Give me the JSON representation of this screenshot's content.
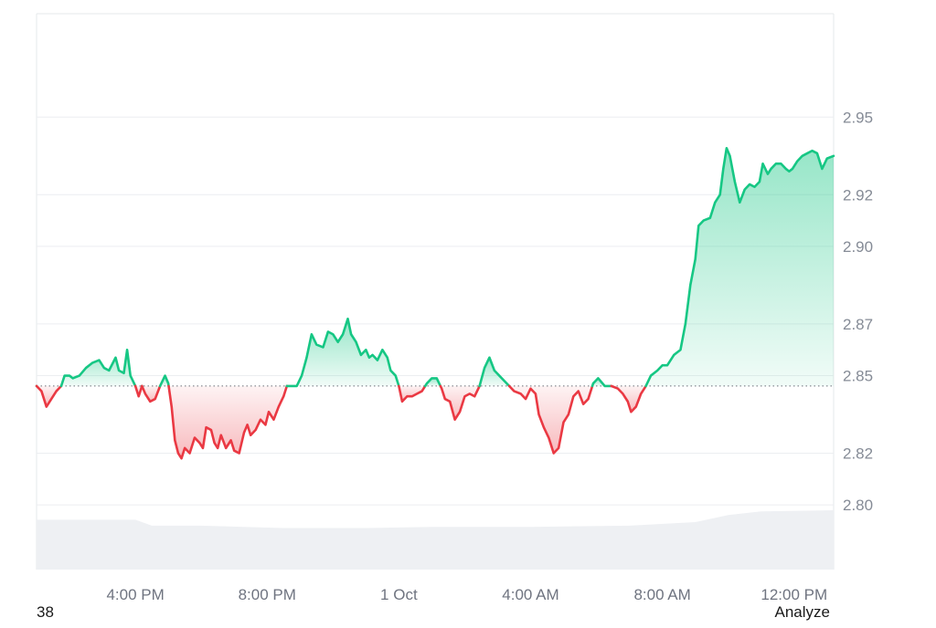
{
  "chart_data": {
    "type": "area",
    "baseline": 2.846,
    "ylim": [
      2.775,
      2.99
    ],
    "y_ticks": [
      "2.95",
      "2.92",
      "2.90",
      "2.87",
      "2.85",
      "2.82",
      "2.80"
    ],
    "x_ticks": [
      "4:00 PM",
      "8:00 PM",
      "1 Oct",
      "4:00 AM",
      "8:00 AM",
      "12:00 PM"
    ],
    "x_tick_hours": [
      4,
      8,
      12,
      16,
      20,
      24
    ],
    "x_range_hours": [
      1.0,
      25.2
    ],
    "colors": {
      "above": "#16c784",
      "below": "#ea3943",
      "grid": "#eceef1",
      "volume": "#eef0f3"
    },
    "series": [
      {
        "values": [
          [
            1.0,
            2.846
          ],
          [
            1.15,
            2.844
          ],
          [
            1.3,
            2.838
          ],
          [
            1.45,
            2.841
          ],
          [
            1.6,
            2.844
          ],
          [
            1.75,
            2.846
          ],
          [
            1.85,
            2.85
          ],
          [
            2.0,
            2.85
          ],
          [
            2.1,
            2.849
          ],
          [
            2.3,
            2.85
          ],
          [
            2.5,
            2.853
          ],
          [
            2.7,
            2.855
          ],
          [
            2.9,
            2.856
          ],
          [
            3.05,
            2.853
          ],
          [
            3.2,
            2.852
          ],
          [
            3.4,
            2.857
          ],
          [
            3.5,
            2.852
          ],
          [
            3.65,
            2.851
          ],
          [
            3.75,
            2.86
          ],
          [
            3.85,
            2.85
          ],
          [
            4.0,
            2.846
          ],
          [
            4.1,
            2.842
          ],
          [
            4.2,
            2.846
          ],
          [
            4.3,
            2.843
          ],
          [
            4.45,
            2.84
          ],
          [
            4.6,
            2.841
          ],
          [
            4.75,
            2.846
          ],
          [
            4.9,
            2.85
          ],
          [
            5.0,
            2.847
          ],
          [
            5.1,
            2.838
          ],
          [
            5.2,
            2.825
          ],
          [
            5.3,
            2.82
          ],
          [
            5.4,
            2.818
          ],
          [
            5.5,
            2.822
          ],
          [
            5.65,
            2.82
          ],
          [
            5.8,
            2.826
          ],
          [
            5.95,
            2.824
          ],
          [
            6.05,
            2.822
          ],
          [
            6.15,
            2.83
          ],
          [
            6.3,
            2.829
          ],
          [
            6.4,
            2.824
          ],
          [
            6.5,
            2.822
          ],
          [
            6.6,
            2.827
          ],
          [
            6.75,
            2.822
          ],
          [
            6.9,
            2.825
          ],
          [
            7.0,
            2.821
          ],
          [
            7.15,
            2.82
          ],
          [
            7.3,
            2.828
          ],
          [
            7.4,
            2.831
          ],
          [
            7.5,
            2.827
          ],
          [
            7.65,
            2.829
          ],
          [
            7.8,
            2.833
          ],
          [
            7.95,
            2.831
          ],
          [
            8.05,
            2.836
          ],
          [
            8.2,
            2.833
          ],
          [
            8.35,
            2.838
          ],
          [
            8.5,
            2.842
          ],
          [
            8.6,
            2.846
          ],
          [
            8.75,
            2.846
          ],
          [
            8.9,
            2.846
          ],
          [
            9.05,
            2.85
          ],
          [
            9.2,
            2.857
          ],
          [
            9.35,
            2.866
          ],
          [
            9.5,
            2.862
          ],
          [
            9.7,
            2.861
          ],
          [
            9.85,
            2.867
          ],
          [
            10.0,
            2.866
          ],
          [
            10.15,
            2.863
          ],
          [
            10.3,
            2.866
          ],
          [
            10.45,
            2.872
          ],
          [
            10.55,
            2.866
          ],
          [
            10.7,
            2.863
          ],
          [
            10.85,
            2.858
          ],
          [
            11.0,
            2.86
          ],
          [
            11.1,
            2.857
          ],
          [
            11.2,
            2.858
          ],
          [
            11.35,
            2.856
          ],
          [
            11.5,
            2.86
          ],
          [
            11.65,
            2.857
          ],
          [
            11.75,
            2.852
          ],
          [
            11.9,
            2.85
          ],
          [
            12.0,
            2.846
          ],
          [
            12.1,
            2.84
          ],
          [
            12.25,
            2.842
          ],
          [
            12.4,
            2.842
          ],
          [
            12.55,
            2.843
          ],
          [
            12.7,
            2.844
          ],
          [
            12.85,
            2.847
          ],
          [
            13.0,
            2.849
          ],
          [
            13.15,
            2.849
          ],
          [
            13.3,
            2.845
          ],
          [
            13.4,
            2.841
          ],
          [
            13.55,
            2.84
          ],
          [
            13.7,
            2.833
          ],
          [
            13.85,
            2.836
          ],
          [
            14.0,
            2.842
          ],
          [
            14.15,
            2.843
          ],
          [
            14.3,
            2.842
          ],
          [
            14.45,
            2.846
          ],
          [
            14.6,
            2.853
          ],
          [
            14.75,
            2.857
          ],
          [
            14.9,
            2.852
          ],
          [
            15.05,
            2.85
          ],
          [
            15.2,
            2.848
          ],
          [
            15.35,
            2.846
          ],
          [
            15.5,
            2.844
          ],
          [
            15.7,
            2.843
          ],
          [
            15.85,
            2.841
          ],
          [
            16.0,
            2.845
          ],
          [
            16.15,
            2.843
          ],
          [
            16.25,
            2.835
          ],
          [
            16.4,
            2.83
          ],
          [
            16.55,
            2.826
          ],
          [
            16.7,
            2.82
          ],
          [
            16.85,
            2.822
          ],
          [
            17.0,
            2.832
          ],
          [
            17.15,
            2.835
          ],
          [
            17.3,
            2.842
          ],
          [
            17.45,
            2.844
          ],
          [
            17.6,
            2.839
          ],
          [
            17.75,
            2.841
          ],
          [
            17.9,
            2.847
          ],
          [
            18.05,
            2.849
          ],
          [
            18.25,
            2.846
          ],
          [
            18.45,
            2.846
          ],
          [
            18.65,
            2.845
          ],
          [
            18.8,
            2.843
          ],
          [
            18.95,
            2.84
          ],
          [
            19.05,
            2.836
          ],
          [
            19.2,
            2.838
          ],
          [
            19.35,
            2.843
          ],
          [
            19.5,
            2.846
          ],
          [
            19.65,
            2.85
          ],
          [
            19.85,
            2.852
          ],
          [
            20.0,
            2.854
          ],
          [
            20.15,
            2.854
          ],
          [
            20.35,
            2.858
          ],
          [
            20.55,
            2.86
          ],
          [
            20.7,
            2.87
          ],
          [
            20.85,
            2.885
          ],
          [
            21.0,
            2.895
          ],
          [
            21.1,
            2.908
          ],
          [
            21.25,
            2.91
          ],
          [
            21.45,
            2.911
          ],
          [
            21.6,
            2.917
          ],
          [
            21.75,
            2.92
          ],
          [
            21.85,
            2.93
          ],
          [
            21.95,
            2.938
          ],
          [
            22.05,
            2.935
          ],
          [
            22.2,
            2.925
          ],
          [
            22.35,
            2.917
          ],
          [
            22.5,
            2.922
          ],
          [
            22.65,
            2.924
          ],
          [
            22.8,
            2.923
          ],
          [
            22.95,
            2.925
          ],
          [
            23.05,
            2.932
          ],
          [
            23.2,
            2.928
          ],
          [
            23.3,
            2.93
          ],
          [
            23.45,
            2.932
          ],
          [
            23.6,
            2.932
          ],
          [
            23.75,
            2.93
          ],
          [
            23.85,
            2.929
          ],
          [
            23.95,
            2.93
          ],
          [
            24.1,
            2.933
          ],
          [
            24.25,
            2.935
          ],
          [
            24.4,
            2.936
          ],
          [
            24.55,
            2.937
          ],
          [
            24.7,
            2.936
          ],
          [
            24.85,
            2.93
          ],
          [
            25.0,
            2.934
          ],
          [
            25.2,
            2.935
          ]
        ]
      }
    ],
    "volume_values": [
      [
        1.0,
        0.42
      ],
      [
        4.0,
        0.42
      ],
      [
        4.5,
        0.37
      ],
      [
        6.0,
        0.37
      ],
      [
        8.5,
        0.35
      ],
      [
        11.0,
        0.35
      ],
      [
        13.0,
        0.36
      ],
      [
        16.0,
        0.36
      ],
      [
        19.0,
        0.37
      ],
      [
        21.0,
        0.4
      ],
      [
        22.0,
        0.46
      ],
      [
        23.0,
        0.49
      ],
      [
        25.2,
        0.5
      ]
    ]
  },
  "footer": {
    "left": "38",
    "right": "Analyze"
  }
}
